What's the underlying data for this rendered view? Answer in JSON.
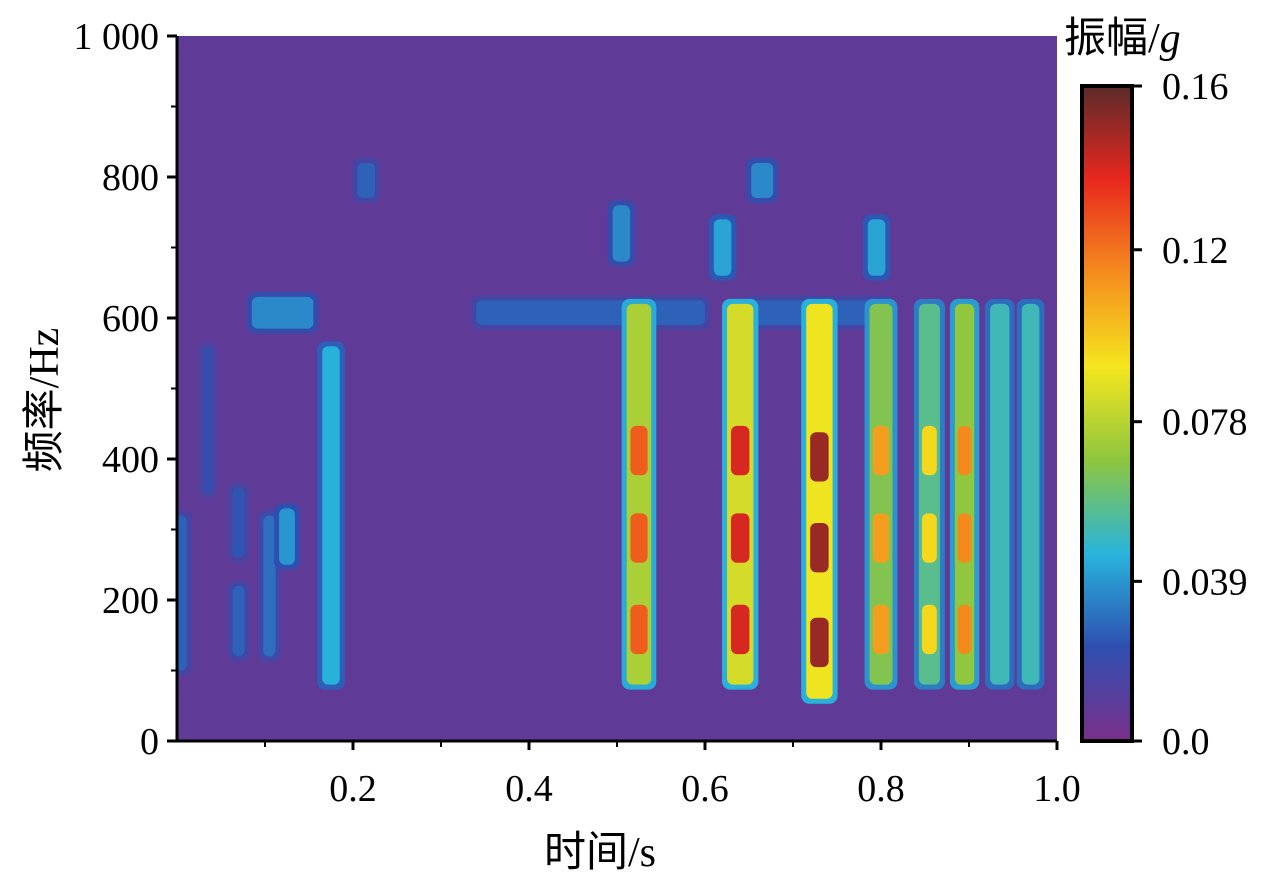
{
  "chart_data": {
    "type": "heatmap",
    "xlabel": "时间/s",
    "ylabel": "频率/Hz",
    "colorbar_label_main": "振幅/",
    "colorbar_label_unit": "g",
    "xlim": [
      0,
      1.0
    ],
    "ylim": [
      0,
      1000
    ],
    "x_ticks": [
      0.2,
      0.4,
      0.6,
      0.8,
      1.0
    ],
    "x_tick_labels": [
      "0.2",
      "0.4",
      "0.6",
      "0.8",
      "1.0"
    ],
    "y_ticks": [
      0,
      200,
      400,
      600,
      800,
      1000
    ],
    "y_tick_labels": [
      "0",
      "200",
      "400",
      "600",
      "800",
      "1 000"
    ],
    "colorbar_ticks": [
      0.0,
      0.039,
      0.078,
      0.12,
      0.16
    ],
    "colorbar_tick_labels": [
      "0.0",
      "0.039",
      "0.078",
      "0.12",
      "0.16"
    ],
    "colorbar_range": [
      0.0,
      0.16
    ],
    "colormap": [
      "#7a2f8a",
      "#2f4fb0",
      "#28b4dc",
      "#8ec63f",
      "#f5e61e",
      "#f58c1e",
      "#e8281e",
      "#5a2a2a"
    ],
    "background_value": 0.008,
    "bands": [
      {
        "t": 0.005,
        "width": 0.012,
        "fmin": 100,
        "fmax": 320,
        "peak": 0.045
      },
      {
        "t": 0.035,
        "width": 0.012,
        "fmin": 350,
        "fmax": 560,
        "peak": 0.035
      },
      {
        "t": 0.07,
        "width": 0.014,
        "fmin": 120,
        "fmax": 220,
        "peak": 0.045
      },
      {
        "t": 0.07,
        "width": 0.014,
        "fmin": 260,
        "fmax": 360,
        "peak": 0.04
      },
      {
        "t": 0.105,
        "width": 0.014,
        "fmin": 120,
        "fmax": 320,
        "peak": 0.05
      },
      {
        "t": 0.125,
        "width": 0.018,
        "fmin": 250,
        "fmax": 330,
        "peak": 0.065
      },
      {
        "t": 0.175,
        "width": 0.02,
        "fmin": 80,
        "fmax": 560,
        "peak": 0.075
      },
      {
        "t": 0.12,
        "width": 0.07,
        "fmin": 585,
        "fmax": 630,
        "peak": 0.06
      },
      {
        "t": 0.215,
        "width": 0.02,
        "fmin": 770,
        "fmax": 820,
        "peak": 0.045
      },
      {
        "t": 0.47,
        "width": 0.26,
        "fmin": 590,
        "fmax": 625,
        "peak": 0.045
      },
      {
        "t": 0.73,
        "width": 0.16,
        "fmin": 590,
        "fmax": 625,
        "peak": 0.045
      },
      {
        "t": 0.505,
        "width": 0.02,
        "fmin": 680,
        "fmax": 760,
        "peak": 0.06
      },
      {
        "t": 0.525,
        "width": 0.028,
        "fmin": 80,
        "fmax": 620,
        "peak": 0.125
      },
      {
        "t": 0.62,
        "width": 0.02,
        "fmin": 660,
        "fmax": 740,
        "peak": 0.07
      },
      {
        "t": 0.64,
        "width": 0.03,
        "fmin": 80,
        "fmax": 620,
        "peak": 0.14
      },
      {
        "t": 0.665,
        "width": 0.025,
        "fmin": 770,
        "fmax": 820,
        "peak": 0.06
      },
      {
        "t": 0.73,
        "width": 0.03,
        "fmin": 60,
        "fmax": 620,
        "peak": 0.15
      },
      {
        "t": 0.8,
        "width": 0.026,
        "fmin": 80,
        "fmax": 620,
        "peak": 0.11
      },
      {
        "t": 0.795,
        "width": 0.02,
        "fmin": 660,
        "fmax": 740,
        "peak": 0.07
      },
      {
        "t": 0.855,
        "width": 0.024,
        "fmin": 80,
        "fmax": 620,
        "peak": 0.095
      },
      {
        "t": 0.895,
        "width": 0.022,
        "fmin": 80,
        "fmax": 620,
        "peak": 0.115
      },
      {
        "t": 0.935,
        "width": 0.022,
        "fmin": 80,
        "fmax": 620,
        "peak": 0.085
      },
      {
        "t": 0.97,
        "width": 0.02,
        "fmin": 80,
        "fmax": 620,
        "peak": 0.085
      }
    ]
  }
}
